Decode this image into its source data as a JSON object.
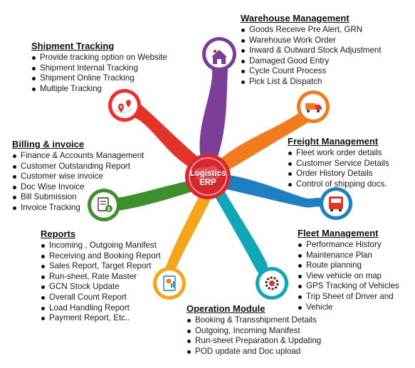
{
  "hub": {
    "line1": "Logistics",
    "line2": "ERP"
  },
  "modules": {
    "warehouse": {
      "title": "Warehouse Management",
      "items": [
        "Goods Receive Pre Alert, GRN",
        "Warehouse Work Order",
        "Inward & Outward Stock Adjustment",
        "Damaged Good Entry",
        "Cycle Count Process",
        "Pick List & Dispatch"
      ]
    },
    "shipment": {
      "title": "Shipment Tracking",
      "items": [
        "Provide tracking option on Website",
        "Shipment Internal Tracking",
        "Shipment Online Tracking",
        "Multiple Tracking"
      ]
    },
    "billing": {
      "title": "Billing & invoice",
      "items": [
        "Finance & Accounts Management",
        "Customer Outstanding Report",
        "Customer wise invoice",
        "Doc Wise Invoice",
        "Bill Submission",
        "Invoice Tracking"
      ]
    },
    "freight": {
      "title": "Freight Management",
      "items": [
        "Fleet work order details",
        "Customer Service Details",
        "Order History Details",
        "Control of shipping docs."
      ]
    },
    "reports": {
      "title": "Reports",
      "items": [
        "Incoming , Outgoing Manifest",
        "Receiving and Booking Report",
        "Sales Report, Target Report",
        "Run-sheet, Rate Master",
        "GCN Stock Update",
        "Overall Count Report",
        "Load Handling Report",
        "Payment Report, Etc.."
      ]
    },
    "fleet": {
      "title": "Fleet Management",
      "items": [
        "Performance History",
        "Maintenance Plan",
        "Route planning",
        "View vehicle on map",
        "GPS Tracking of Vehicles",
        "Trip Sheet of Driver and",
        "Vehicle"
      ]
    },
    "operation": {
      "title": "Operation Module",
      "items": [
        "Booking & Transshipment Details",
        "Outgoing, Incoming Manifest",
        "Run-sheet Preparation & Updating",
        "POD update and Doc upload"
      ]
    }
  },
  "colors": {
    "warehouse": "#7b3f98",
    "shipment": "#e2342b",
    "freight": "#f07c1f",
    "billing": "#3f8f2f",
    "fleet": "#1f7fc1",
    "reports": "#f4a51c",
    "operation": "#12a7b7",
    "hub": "#d8282f"
  }
}
